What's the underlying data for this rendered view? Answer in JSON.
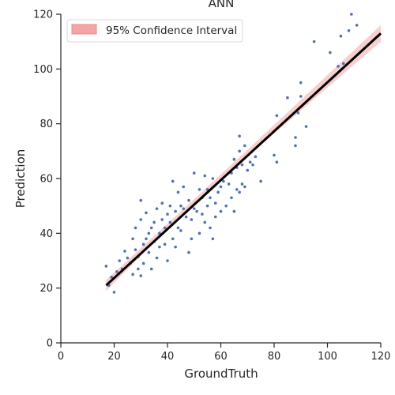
{
  "chart_data": {
    "type": "scatter",
    "title": "ANN",
    "xlabel": "GroundTruth",
    "ylabel": "Prediction",
    "xlim": [
      0,
      120
    ],
    "ylim": [
      0,
      120
    ],
    "xticks": [
      0,
      20,
      40,
      60,
      80,
      100,
      120
    ],
    "yticks": [
      0,
      20,
      40,
      60,
      80,
      100,
      120
    ],
    "grid": false,
    "legend_position": "top-left",
    "legend": [
      "95% Confidence Interval"
    ],
    "colors": {
      "points": "#4c72b0",
      "fit_line": "#000000",
      "band": "#f4a6a6"
    },
    "fit_line": {
      "x": [
        17,
        120
      ],
      "y": [
        21,
        113
      ]
    },
    "confidence_band": {
      "x": [
        17,
        40,
        70,
        120
      ],
      "lower": [
        19,
        41.5,
        68,
        110
      ],
      "upper": [
        23,
        43.5,
        70.5,
        116
      ]
    },
    "points": [
      [
        17,
        28
      ],
      [
        18,
        21
      ],
      [
        19,
        24
      ],
      [
        20,
        18.5
      ],
      [
        21,
        26
      ],
      [
        22,
        30
      ],
      [
        23,
        27
      ],
      [
        24,
        33.5
      ],
      [
        25,
        31
      ],
      [
        26,
        29
      ],
      [
        27,
        25
      ],
      [
        27,
        38
      ],
      [
        28,
        34
      ],
      [
        28,
        42
      ],
      [
        29,
        27
      ],
      [
        29,
        31.5
      ],
      [
        30,
        24.5
      ],
      [
        30,
        45
      ],
      [
        30,
        52
      ],
      [
        31,
        36
      ],
      [
        31,
        29
      ],
      [
        32,
        38
      ],
      [
        32,
        47.5
      ],
      [
        33,
        40
      ],
      [
        33,
        33
      ],
      [
        34,
        27
      ],
      [
        34,
        42
      ],
      [
        35,
        37
      ],
      [
        35,
        44
      ],
      [
        36,
        31
      ],
      [
        36,
        49
      ],
      [
        37,
        40
      ],
      [
        37,
        35
      ],
      [
        38,
        45
      ],
      [
        38,
        51
      ],
      [
        39,
        36
      ],
      [
        39,
        42
      ],
      [
        40,
        47
      ],
      [
        40,
        30
      ],
      [
        41,
        44
      ],
      [
        41,
        50
      ],
      [
        42,
        59
      ],
      [
        42,
        38
      ],
      [
        43,
        48
      ],
      [
        43,
        35
      ],
      [
        44,
        42
      ],
      [
        44,
        55
      ],
      [
        45,
        50
      ],
      [
        45,
        41
      ],
      [
        46,
        49
      ],
      [
        46,
        57
      ],
      [
        47,
        46
      ],
      [
        48,
        33
      ],
      [
        48,
        52
      ],
      [
        49,
        38
      ],
      [
        49,
        45
      ],
      [
        50,
        62
      ],
      [
        50,
        49
      ],
      [
        51,
        48
      ],
      [
        52,
        56
      ],
      [
        52,
        40
      ],
      [
        53,
        53
      ],
      [
        53,
        47
      ],
      [
        54,
        61
      ],
      [
        54,
        44
      ],
      [
        55,
        50
      ],
      [
        55,
        56
      ],
      [
        56,
        42
      ],
      [
        56,
        53
      ],
      [
        57,
        38
      ],
      [
        57,
        60
      ],
      [
        58,
        51
      ],
      [
        58,
        46
      ],
      [
        59,
        55
      ],
      [
        60,
        57
      ],
      [
        60,
        48
      ],
      [
        61,
        59
      ],
      [
        62,
        50
      ],
      [
        63,
        58
      ],
      [
        64,
        62
      ],
      [
        64,
        53
      ],
      [
        65,
        48
      ],
      [
        65,
        67
      ],
      [
        66,
        56
      ],
      [
        66,
        64
      ],
      [
        67,
        55
      ],
      [
        67,
        70
      ],
      [
        67,
        75.5
      ],
      [
        68,
        58
      ],
      [
        68,
        65
      ],
      [
        69,
        57
      ],
      [
        69,
        72
      ],
      [
        70,
        63
      ],
      [
        71,
        66
      ],
      [
        72,
        65
      ],
      [
        73,
        68
      ],
      [
        75,
        59
      ],
      [
        80,
        68.5
      ],
      [
        81,
        66
      ],
      [
        81,
        83
      ],
      [
        85,
        89.5
      ],
      [
        88,
        75
      ],
      [
        88,
        72
      ],
      [
        89,
        84
      ],
      [
        90,
        95
      ],
      [
        90,
        90
      ],
      [
        92,
        79
      ],
      [
        95,
        110
      ],
      [
        101,
        106
      ],
      [
        104,
        101
      ],
      [
        105,
        112
      ],
      [
        106,
        102
      ],
      [
        108,
        114
      ],
      [
        109,
        120
      ],
      [
        111,
        116
      ]
    ]
  }
}
